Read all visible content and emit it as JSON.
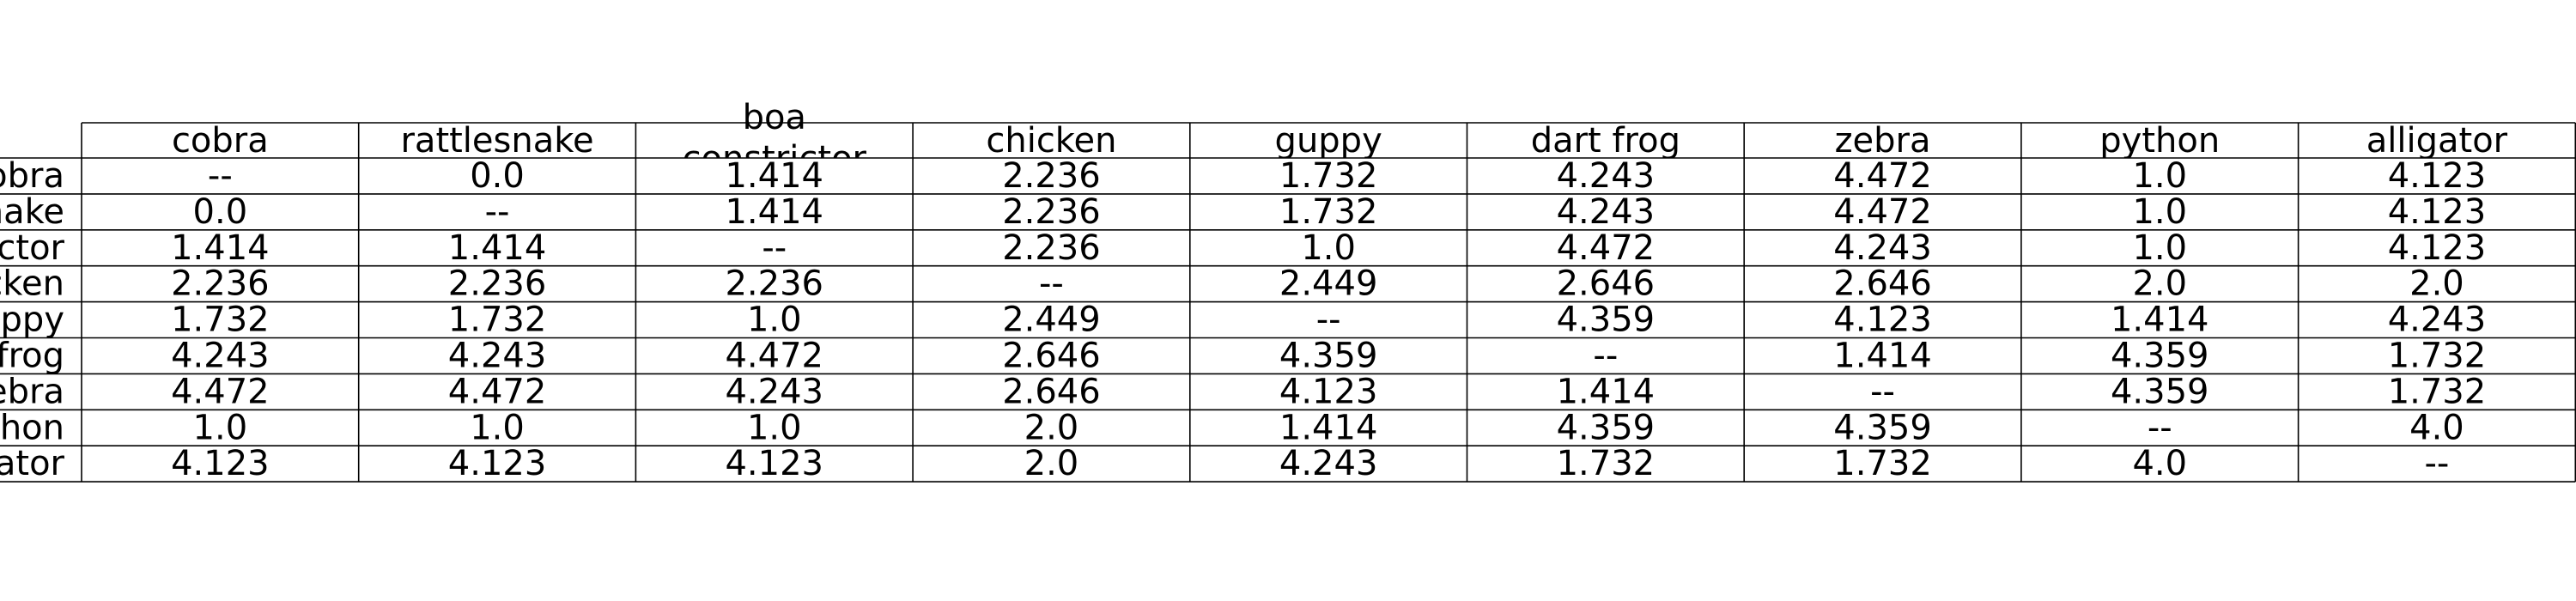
{
  "chart_data": {
    "type": "table",
    "columns": [
      "cobra",
      "rattlesnake",
      "boa constrictor",
      "chicken",
      "guppy",
      "dart frog",
      "zebra",
      "python",
      "alligator"
    ],
    "rows": [
      "cobra",
      "rattlesnake",
      "boa constrictor",
      "chicken",
      "guppy",
      "dart frog",
      "zebra",
      "python",
      "alligator"
    ],
    "cells": [
      [
        "--",
        "0.0",
        "1.414",
        "2.236",
        "1.732",
        "4.243",
        "4.472",
        "1.0",
        "4.123"
      ],
      [
        "0.0",
        "--",
        "1.414",
        "2.236",
        "1.732",
        "4.243",
        "4.472",
        "1.0",
        "4.123"
      ],
      [
        "1.414",
        "1.414",
        "--",
        "2.236",
        "1.0",
        "4.472",
        "4.243",
        "1.0",
        "4.123"
      ],
      [
        "2.236",
        "2.236",
        "2.236",
        "--",
        "2.449",
        "2.646",
        "2.646",
        "2.0",
        "2.0"
      ],
      [
        "1.732",
        "1.732",
        "1.0",
        "2.449",
        "--",
        "4.359",
        "4.123",
        "1.414",
        "4.243"
      ],
      [
        "4.243",
        "4.243",
        "4.472",
        "2.646",
        "4.359",
        "--",
        "1.414",
        "4.359",
        "1.732"
      ],
      [
        "4.472",
        "4.472",
        "4.243",
        "2.646",
        "4.123",
        "1.414",
        "--",
        "4.359",
        "1.732"
      ],
      [
        "1.0",
        "1.0",
        "1.0",
        "2.0",
        "1.414",
        "4.359",
        "4.359",
        "--",
        "4.0"
      ],
      [
        "4.123",
        "4.123",
        "4.123",
        "2.0",
        "4.243",
        "1.732",
        "1.732",
        "4.0",
        "--"
      ]
    ]
  }
}
